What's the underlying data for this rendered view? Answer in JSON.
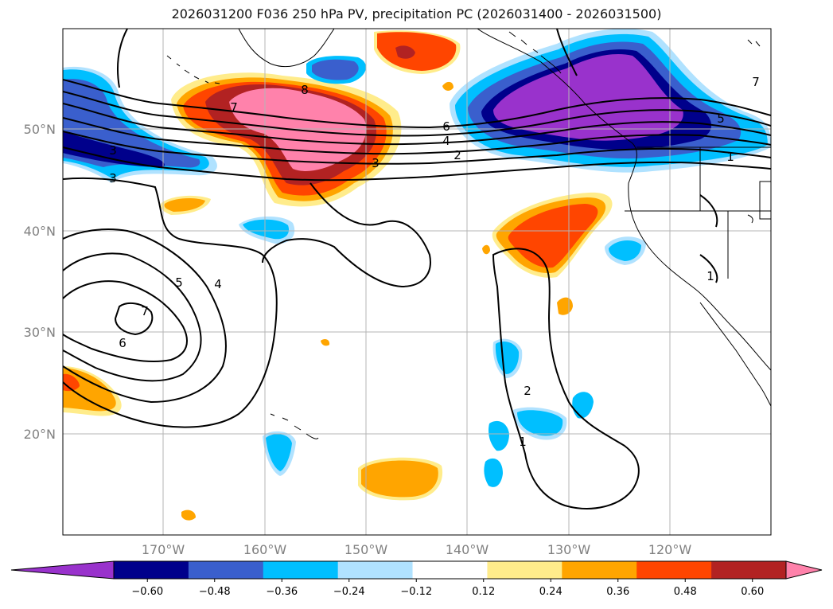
{
  "title": "2026031200 F036 250 hPa PV, precipitation PC (2026031400 - 2026031500)",
  "axes": {
    "lon_labels": [
      "170°W",
      "160°W",
      "150°W",
      "140°W",
      "130°W",
      "120°W"
    ],
    "lat_labels": [
      "50°N",
      "40°N",
      "30°N",
      "20°N"
    ]
  },
  "colorbar": {
    "ticks": [
      "−0.60",
      "−0.48",
      "−0.36",
      "−0.24",
      "−0.12",
      "0.12",
      "0.24",
      "0.36",
      "0.48",
      "0.60"
    ],
    "colors": [
      "#9932cc",
      "#00008b",
      "#3a5fcd",
      "#00bfff",
      "#b0e2ff",
      "#ffffff",
      "#ffec8b",
      "#ffa500",
      "#ff4500",
      "#b22222",
      "#ff82ab"
    ],
    "extend": "both"
  },
  "pv_contour_labels": [
    "7",
    "8",
    "6",
    "4",
    "2",
    "3",
    "5",
    "1",
    "3",
    "3",
    "5",
    "4",
    "7",
    "6",
    "2",
    "1",
    "1",
    "7"
  ]
}
